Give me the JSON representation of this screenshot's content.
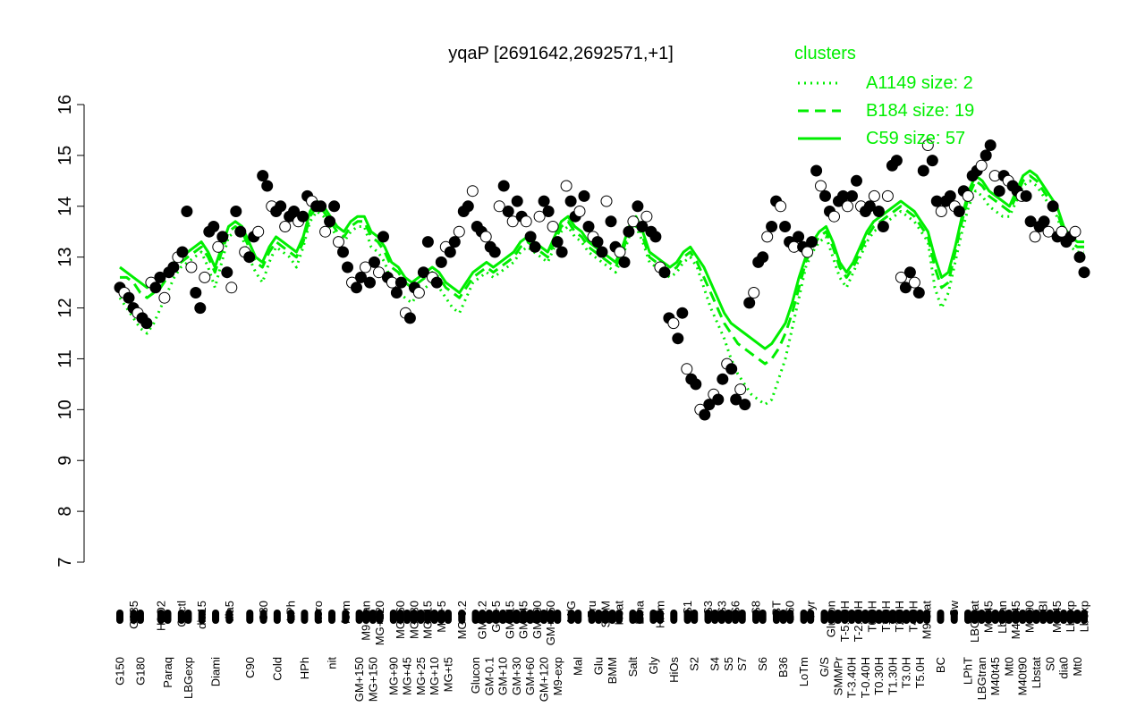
{
  "chart_data": {
    "type": "line",
    "title": "yqaP [2691642,2692571,+1]",
    "xlabel": "",
    "ylabel": "",
    "ylim": [
      7,
      16
    ],
    "yticks": [
      7,
      8,
      9,
      10,
      11,
      12,
      13,
      14,
      15,
      16
    ],
    "legend": {
      "title": "clusters",
      "position": "top-right",
      "entries": [
        {
          "label": "A1149 size: 2",
          "style": "dotted"
        },
        {
          "label": "B184 size: 19",
          "style": "dashed"
        },
        {
          "label": "C59 size: 57",
          "style": "solid"
        }
      ]
    },
    "colors": {
      "cluster_line": "#00ee00",
      "points": "#000000",
      "axes": "#000000"
    },
    "tick_labels": [
      {
        "label": "G150",
        "pos": 1
      },
      {
        "label": "G135",
        "pos": 3
      },
      {
        "label": "G180",
        "pos": 4
      },
      {
        "label": "H2O2",
        "pos": 7
      },
      {
        "label": "Paraq",
        "pos": 8
      },
      {
        "label": "Oxctl",
        "pos": 10
      },
      {
        "label": "LBGexp",
        "pos": 11
      },
      {
        "label": "dia15",
        "pos": 13
      },
      {
        "label": "Diami",
        "pos": 15
      },
      {
        "label": "dia5",
        "pos": 17
      },
      {
        "label": "C90",
        "pos": 20
      },
      {
        "label": "C30",
        "pos": 22
      },
      {
        "label": "Cold",
        "pos": 24
      },
      {
        "label": "LPh",
        "pos": 26
      },
      {
        "label": "HPh",
        "pos": 28
      },
      {
        "label": "aero",
        "pos": 30
      },
      {
        "label": "nit",
        "pos": 32
      },
      {
        "label": "ferm",
        "pos": 34
      },
      {
        "label": "GM+150",
        "pos": 36
      },
      {
        "label": "M9-tran",
        "pos": 37
      },
      {
        "label": "MG+150",
        "pos": 38
      },
      {
        "label": "MG+120",
        "pos": 39
      },
      {
        "label": "MG+90",
        "pos": 41
      },
      {
        "label": "MG+60",
        "pos": 42
      },
      {
        "label": "MG+45",
        "pos": 43
      },
      {
        "label": "MG+30",
        "pos": 44
      },
      {
        "label": "MG+25",
        "pos": 45
      },
      {
        "label": "MG+15",
        "pos": 46
      },
      {
        "label": "MG+10",
        "pos": 47
      },
      {
        "label": "MG+5",
        "pos": 48
      },
      {
        "label": "MG+t5",
        "pos": 49
      },
      {
        "label": "MG-0.2",
        "pos": 51
      },
      {
        "label": "Glucon",
        "pos": 53
      },
      {
        "label": "GM-0.2",
        "pos": 54
      },
      {
        "label": "GM-0.1",
        "pos": 55
      },
      {
        "label": "GM+5",
        "pos": 56
      },
      {
        "label": "GM+10",
        "pos": 57
      },
      {
        "label": "GM+15",
        "pos": 58
      },
      {
        "label": "GM+30",
        "pos": 59
      },
      {
        "label": "GM+45",
        "pos": 60
      },
      {
        "label": "GM+60",
        "pos": 61
      },
      {
        "label": "GM+90",
        "pos": 62
      },
      {
        "label": "GM+120",
        "pos": 63
      },
      {
        "label": "GM+150",
        "pos": 64
      },
      {
        "label": "M9-exp",
        "pos": 65
      },
      {
        "label": "M/G",
        "pos": 67
      },
      {
        "label": "Mal",
        "pos": 68
      },
      {
        "label": "Fru",
        "pos": 70
      },
      {
        "label": "Glu",
        "pos": 71
      },
      {
        "label": "SMM",
        "pos": 72
      },
      {
        "label": "BMM",
        "pos": 73
      },
      {
        "label": "Heat",
        "pos": 74
      },
      {
        "label": "Salt",
        "pos": 76
      },
      {
        "label": "Etha",
        "pos": 77
      },
      {
        "label": "Gly",
        "pos": 79
      },
      {
        "label": "HiTm",
        "pos": 80
      },
      {
        "label": "HiOs",
        "pos": 82
      },
      {
        "label": "S1",
        "pos": 84
      },
      {
        "label": "S2",
        "pos": 85
      },
      {
        "label": "S3",
        "pos": 87
      },
      {
        "label": "S4",
        "pos": 88
      },
      {
        "label": "S3",
        "pos": 89
      },
      {
        "label": "S5",
        "pos": 90
      },
      {
        "label": "S6",
        "pos": 91
      },
      {
        "label": "S7",
        "pos": 92
      },
      {
        "label": "S8",
        "pos": 94
      },
      {
        "label": "S6",
        "pos": 95
      },
      {
        "label": "BT",
        "pos": 97
      },
      {
        "label": "B36",
        "pos": 98
      },
      {
        "label": "B60",
        "pos": 99
      },
      {
        "label": "LoTm",
        "pos": 101
      },
      {
        "label": "Pyr",
        "pos": 102
      },
      {
        "label": "G/S",
        "pos": 104
      },
      {
        "label": "Glucon",
        "pos": 105
      },
      {
        "label": "SMMPr",
        "pos": 106
      },
      {
        "label": "T-5.40H",
        "pos": 107
      },
      {
        "label": "T-3.40H",
        "pos": 108
      },
      {
        "label": "T-2.40H",
        "pos": 109
      },
      {
        "label": "T-0.40H",
        "pos": 110
      },
      {
        "label": "T0.0H",
        "pos": 111
      },
      {
        "label": "T0.30H",
        "pos": 112
      },
      {
        "label": "T1.0H",
        "pos": 113
      },
      {
        "label": "T1.30H",
        "pos": 114
      },
      {
        "label": "T2.0H",
        "pos": 115
      },
      {
        "label": "T3.0H",
        "pos": 116
      },
      {
        "label": "T4.0H",
        "pos": 117
      },
      {
        "label": "T5.0H",
        "pos": 118
      },
      {
        "label": "M9-stat",
        "pos": 119
      },
      {
        "label": "BC",
        "pos": 121
      },
      {
        "label": "Sw",
        "pos": 123
      },
      {
        "label": "LPhT",
        "pos": 125
      },
      {
        "label": "LBGstat",
        "pos": 126
      },
      {
        "label": "LBGtran",
        "pos": 127
      },
      {
        "label": "M0t45",
        "pos": 128
      },
      {
        "label": "M40t45",
        "pos": 129
      },
      {
        "label": "Lbtran",
        "pos": 130
      },
      {
        "label": "Mt0",
        "pos": 131
      },
      {
        "label": "M40t45",
        "pos": 132
      },
      {
        "label": "M40t90",
        "pos": 133
      },
      {
        "label": "M0t90",
        "pos": 134
      },
      {
        "label": "Lbstat",
        "pos": 135
      },
      {
        "label": "BI",
        "pos": 136
      },
      {
        "label": "S0",
        "pos": 137
      },
      {
        "label": "M0t45",
        "pos": 138
      },
      {
        "label": "dia0",
        "pos": 139
      },
      {
        "label": "Lbexp",
        "pos": 140
      },
      {
        "label": "Mt0",
        "pos": 141
      },
      {
        "label": "Lbexp",
        "pos": 142
      }
    ],
    "series": [
      {
        "style": "solid",
        "values": [
          12.8,
          12.7,
          12.6,
          12.5,
          12.4,
          12.5,
          12.6,
          12.7,
          12.9,
          13.0,
          13.1,
          13.2,
          13.3,
          13.1,
          12.8,
          13.2,
          13.6,
          13.7,
          13.6,
          13.3,
          13.0,
          12.9,
          13.2,
          13.4,
          13.3,
          13.2,
          13.1,
          13.4,
          13.9,
          14.1,
          14.0,
          13.8,
          13.6,
          13.5,
          13.7,
          13.8,
          13.8,
          13.5,
          13.4,
          13.2,
          12.9,
          12.8,
          12.6,
          12.5,
          12.6,
          12.7,
          12.8,
          12.7,
          12.5,
          12.4,
          12.3,
          12.5,
          12.7,
          12.8,
          12.9,
          12.8,
          12.9,
          13.0,
          13.1,
          13.3,
          13.4,
          13.3,
          13.2,
          13.1,
          13.4,
          13.7,
          13.8,
          13.6,
          13.5,
          13.3,
          13.2,
          13.1,
          13.0,
          12.9,
          13.2,
          13.6,
          13.8,
          13.5,
          13.1,
          13.0,
          12.9,
          12.8,
          12.9,
          13.1,
          13.2,
          13.0,
          12.8,
          12.5,
          12.2,
          11.9,
          11.7,
          11.6,
          11.5,
          11.4,
          11.3,
          11.2,
          11.3,
          11.5,
          11.7,
          12.1,
          12.6,
          13.0,
          13.3,
          13.5,
          13.6,
          13.3,
          12.9,
          12.7,
          12.9,
          13.2,
          13.5,
          13.7,
          13.8,
          13.9,
          14.0,
          14.1,
          14.0,
          13.9,
          13.7,
          13.5,
          13.0,
          12.6,
          12.7,
          13.2,
          13.8,
          14.3,
          14.6,
          14.5,
          14.3,
          14.2,
          14.1,
          14.0,
          14.3,
          14.6,
          14.7,
          14.6,
          14.4,
          14.2,
          14.0,
          13.6,
          13.4,
          13.3,
          13.3
        ]
      },
      {
        "style": "dashed",
        "values": [
          12.6,
          12.6,
          12.5,
          12.3,
          12.2,
          12.3,
          12.4,
          12.6,
          12.8,
          12.9,
          13.0,
          13.1,
          13.2,
          13.0,
          12.7,
          13.1,
          13.5,
          13.6,
          13.5,
          13.2,
          12.9,
          12.8,
          13.1,
          13.3,
          13.2,
          13.1,
          13.0,
          13.3,
          13.8,
          14.0,
          13.9,
          13.7,
          13.5,
          13.4,
          13.6,
          13.7,
          13.7,
          13.4,
          13.3,
          13.1,
          12.8,
          12.7,
          12.5,
          12.4,
          12.5,
          12.6,
          12.7,
          12.6,
          12.4,
          12.3,
          12.2,
          12.4,
          12.6,
          12.7,
          12.8,
          12.7,
          12.8,
          12.9,
          13.0,
          13.2,
          13.3,
          13.2,
          13.1,
          13.0,
          13.3,
          13.6,
          13.7,
          13.5,
          13.4,
          13.2,
          13.1,
          13.0,
          12.9,
          12.8,
          13.1,
          13.5,
          13.7,
          13.4,
          13.0,
          12.9,
          12.8,
          12.7,
          12.8,
          13.0,
          13.1,
          12.9,
          12.6,
          12.3,
          12.0,
          11.7,
          11.5,
          11.3,
          11.2,
          11.1,
          11.0,
          10.9,
          11.0,
          11.2,
          11.5,
          11.9,
          12.4,
          12.9,
          13.2,
          13.4,
          13.5,
          13.2,
          12.8,
          12.6,
          12.8,
          13.1,
          13.4,
          13.6,
          13.7,
          13.8,
          13.9,
          14.0,
          13.9,
          13.8,
          13.6,
          13.4,
          12.8,
          12.4,
          12.5,
          13.1,
          13.7,
          14.2,
          14.5,
          14.4,
          14.2,
          14.1,
          14.0,
          13.9,
          14.2,
          14.5,
          14.6,
          14.5,
          14.3,
          14.1,
          13.9,
          13.5,
          13.3,
          13.2,
          13.2
        ]
      },
      {
        "style": "dotted",
        "values": [
          12.2,
          12.0,
          11.8,
          11.6,
          11.5,
          11.7,
          12.0,
          12.3,
          12.6,
          12.8,
          12.9,
          13.0,
          13.1,
          12.8,
          12.4,
          12.9,
          13.4,
          13.5,
          13.4,
          13.0,
          12.7,
          12.5,
          12.9,
          13.2,
          13.1,
          13.0,
          12.8,
          13.2,
          13.7,
          13.9,
          13.8,
          13.6,
          13.4,
          13.3,
          13.5,
          13.6,
          13.6,
          13.2,
          13.1,
          12.9,
          12.5,
          12.3,
          12.2,
          12.1,
          12.3,
          12.4,
          12.5,
          12.4,
          12.2,
          12.0,
          11.9,
          12.2,
          12.5,
          12.6,
          12.7,
          12.6,
          12.7,
          12.8,
          12.9,
          13.1,
          13.2,
          13.1,
          13.0,
          12.9,
          13.2,
          13.5,
          13.6,
          13.4,
          13.3,
          13.1,
          13.0,
          12.9,
          12.8,
          12.7,
          13.0,
          13.4,
          13.6,
          13.3,
          12.9,
          12.8,
          12.7,
          12.6,
          12.7,
          12.9,
          13.0,
          12.8,
          12.4,
          12.0,
          11.7,
          11.4,
          11.0,
          10.7,
          10.5,
          10.3,
          10.2,
          10.1,
          10.2,
          10.6,
          11.0,
          11.6,
          12.2,
          12.8,
          13.1,
          13.3,
          13.4,
          13.0,
          12.6,
          12.4,
          12.7,
          13.0,
          13.3,
          13.5,
          13.6,
          13.7,
          13.8,
          13.9,
          13.8,
          13.7,
          13.5,
          13.3,
          12.4,
          12.0,
          12.3,
          12.9,
          13.5,
          14.0,
          14.3,
          14.2,
          14.0,
          13.9,
          13.8,
          13.8,
          14.1,
          14.4,
          14.5,
          14.4,
          14.2,
          14.0,
          13.8,
          13.4,
          13.2,
          13.1,
          13.1
        ]
      },
      {
        "style": "points",
        "values": [
          12.4,
          12.3,
          12.2,
          12.0,
          11.9,
          11.8,
          11.7,
          12.5,
          12.4,
          12.6,
          12.2,
          12.7,
          12.8,
          13.0,
          13.1,
          13.9,
          12.8,
          12.3,
          12.0,
          12.6,
          13.5,
          13.6,
          13.2,
          13.4,
          12.7,
          12.4,
          13.9,
          13.5,
          13.1,
          13.0,
          13.4,
          13.5,
          14.6,
          14.4,
          14.0,
          13.9,
          14.0,
          13.6,
          13.8,
          13.9,
          13.7,
          13.8,
          14.2,
          14.1,
          14.0,
          14.0,
          13.5,
          13.7,
          14.0,
          13.3,
          13.1,
          12.8,
          12.5,
          12.4,
          12.6,
          12.8,
          12.5,
          12.9,
          12.7,
          13.4,
          12.6,
          12.5,
          12.3,
          12.5,
          11.9,
          11.8,
          12.4,
          12.3,
          12.7,
          13.3,
          12.6,
          12.5,
          12.9,
          13.2,
          13.1,
          13.3,
          13.5,
          13.9,
          14.0,
          14.3,
          13.6,
          13.5,
          13.4,
          13.2,
          13.1,
          14.0,
          14.4,
          13.9,
          13.7,
          14.1,
          13.8,
          13.7,
          13.4,
          13.2,
          13.8,
          14.1,
          13.9,
          13.6,
          13.3,
          13.1,
          14.4,
          14.1,
          13.8,
          13.9,
          14.2,
          13.6,
          13.4,
          13.3,
          13.1,
          14.1,
          13.7,
          13.2,
          13.1,
          12.9,
          13.5,
          13.7,
          14.0,
          13.6,
          13.8,
          13.5,
          13.4,
          12.8,
          12.7,
          11.8,
          11.7,
          11.4,
          11.9,
          10.8,
          10.6,
          10.5,
          10.0,
          9.9,
          10.1,
          10.3,
          10.2,
          10.6,
          10.9,
          10.8,
          10.2,
          10.4,
          10.1,
          12.1,
          12.3,
          12.9,
          13.0,
          13.4,
          13.6,
          14.1,
          14.0,
          13.6,
          13.3,
          13.2,
          13.4,
          13.2,
          13.1,
          13.3,
          14.7,
          14.4,
          14.2,
          13.9,
          13.8,
          14.1,
          14.2,
          14.0,
          14.2,
          14.5,
          14.0,
          13.9,
          14.0,
          14.2,
          13.9,
          13.6,
          14.2,
          14.8,
          14.9,
          12.6,
          12.4,
          12.7,
          12.5,
          12.3,
          14.7,
          15.2,
          14.9,
          14.1,
          13.9,
          14.1,
          14.2,
          14.0,
          13.9,
          14.3,
          14.2,
          14.6,
          14.7,
          14.8,
          15.0,
          15.2,
          14.6,
          14.3,
          14.6,
          14.5,
          14.4,
          14.3,
          14.2,
          14.2,
          13.7,
          13.4,
          13.6,
          13.7,
          13.5,
          14.0,
          13.4,
          13.5,
          13.3,
          13.4,
          13.5,
          13.0,
          12.7
        ]
      }
    ]
  }
}
